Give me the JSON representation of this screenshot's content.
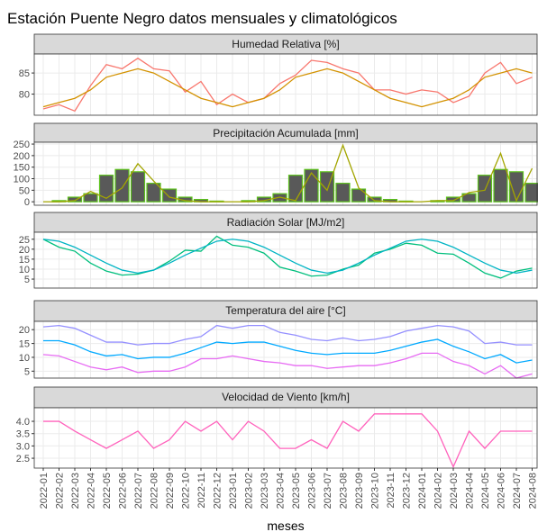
{
  "chart_data": {
    "type": "facet",
    "title": "Estación Puente Negro datos mensuales y climatológicos",
    "x_label": "meses",
    "categories": [
      "2022-01",
      "2022-02",
      "2022-03",
      "2022-04",
      "2022-05",
      "2022-06",
      "2022-07",
      "2022-08",
      "2022-09",
      "2022-10",
      "2022-11",
      "2022-12",
      "2023-01",
      "2023-02",
      "2023-03",
      "2023-04",
      "2023-05",
      "2023-06",
      "2023-07",
      "2023-08",
      "2023-09",
      "2023-10",
      "2023-11",
      "2023-12",
      "2024-01",
      "2024-02",
      "2024-03",
      "2024-04",
      "2024-05",
      "2024-06",
      "2024-07",
      "2024-08"
    ],
    "grid": true,
    "panels": [
      {
        "type": "line",
        "title": "Humedad Relativa [%]",
        "ylim": [
          75,
          89.5
        ],
        "yticks": [
          80,
          85
        ],
        "series": [
          {
            "type": "line",
            "color": "#F8766D",
            "values": [
              76.5,
              77.5,
              76,
              82,
              87,
              86,
              88.5,
              86,
              85.5,
              80.5,
              83,
              77.5,
              80,
              78,
              79,
              82.5,
              84.5,
              88,
              87.5,
              86,
              85,
              81,
              81,
              80,
              81,
              80.5,
              78,
              79.5,
              85,
              87.5,
              82.5,
              84
            ]
          },
          {
            "type": "line",
            "color": "#D39200",
            "values": [
              77,
              78,
              79,
              81,
              84,
              85,
              86,
              85,
              83,
              81,
              79,
              78,
              77,
              78,
              79,
              81,
              84,
              85,
              86,
              85,
              83,
              81,
              79,
              78,
              77,
              78,
              79,
              81,
              84,
              85,
              86,
              85
            ]
          }
        ]
      },
      {
        "type": "bar",
        "title": "Precipitación Acumulada [mm]",
        "ylim": [
          -15,
          258
        ],
        "yticks": [
          0,
          50,
          100,
          150,
          200,
          250
        ],
        "series": [
          {
            "type": "bar",
            "color": "#595959",
            "border": "#5CC21C",
            "values": [
              0,
              5,
              20,
              35,
              115,
              140,
              130,
              80,
              55,
              20,
              10,
              3,
              0,
              5,
              20,
              35,
              115,
              140,
              130,
              80,
              55,
              20,
              10,
              3,
              0,
              5,
              20,
              35,
              115,
              140,
              130,
              80
            ]
          },
          {
            "type": "line",
            "color": "#A3A500",
            "values": [
              0,
              0,
              5,
              45,
              15,
              60,
              165,
              90,
              20,
              5,
              0,
              0,
              0,
              0,
              5,
              20,
              5,
              125,
              50,
              245,
              60,
              5,
              0,
              0,
              0,
              5,
              5,
              40,
              50,
              210,
              5,
              145
            ]
          }
        ]
      },
      {
        "type": "line",
        "title": "Radiación Solar [MJ/m2]",
        "ylim": [
          0.5,
          28.5
        ],
        "yticks": [
          5,
          10,
          15,
          20,
          25
        ],
        "series": [
          {
            "type": "line",
            "color": "#00BF7D",
            "values": [
              25,
              21,
              19,
              13,
              9,
              7,
              7.5,
              9.5,
              14,
              19.5,
              19,
              26.5,
              22,
              21,
              18,
              11,
              9,
              6.5,
              7,
              10,
              12,
              18,
              20,
              23,
              22,
              18,
              17.5,
              13,
              8,
              5.5,
              9,
              10.5
            ]
          },
          {
            "type": "line",
            "color": "#00B4C4",
            "values": [
              25,
              24,
              21,
              17,
              13,
              9.5,
              8,
              9.5,
              13,
              17,
              20.5,
              24,
              25,
              24,
              21,
              17,
              13,
              9.5,
              8,
              9.5,
              13,
              17,
              20.5,
              24,
              25,
              24,
              21,
              17,
              13,
              9.5,
              8,
              9.5
            ]
          }
        ]
      },
      {
        "type": "line",
        "title": "Temperatura del aire [°C]",
        "ylim": [
          2.5,
          23
        ],
        "yticks": [
          5,
          10,
          15,
          20
        ],
        "series": [
          {
            "type": "line",
            "color": "#9590FF",
            "values": [
              21,
              21.5,
              20.5,
              18,
              15.5,
              15.5,
              14.5,
              15,
              15,
              16.5,
              17.5,
              21.5,
              20.5,
              21.5,
              21.5,
              19,
              18,
              16.5,
              16,
              17,
              16,
              16.5,
              17.5,
              19.5,
              20.5,
              21.5,
              21,
              19.5,
              15,
              15.5,
              14.5,
              14.5
            ]
          },
          {
            "type": "line",
            "color": "#00A9FF",
            "values": [
              16,
              16,
              14.5,
              12,
              10.5,
              11,
              9.5,
              10,
              10,
              11.5,
              13.5,
              15.5,
              15,
              15.5,
              15.5,
              14,
              12.5,
              11.5,
              11,
              11.5,
              11.5,
              11.5,
              12.5,
              14,
              15.5,
              16.5,
              14,
              12,
              9.5,
              11,
              8,
              9
            ]
          },
          {
            "type": "line",
            "color": "#E76BF3",
            "values": [
              11,
              10.5,
              8.5,
              6.5,
              5.5,
              6.5,
              4.5,
              5,
              5,
              6.5,
              9.5,
              9.5,
              10.5,
              9.5,
              8.5,
              8,
              7,
              7,
              6,
              6.5,
              7,
              7,
              8,
              9.5,
              11.5,
              11.5,
              8.5,
              7,
              4,
              7,
              2.5,
              4
            ]
          }
        ]
      },
      {
        "type": "line",
        "title": "Velocidad de Viento [km/h]",
        "ylim": [
          2.1,
          4.55
        ],
        "yticks": [
          {
            "value": 2.5,
            "label": "2.5"
          },
          {
            "value": 3,
            "label": "3.0"
          },
          {
            "value": 3.5,
            "label": "3.5"
          },
          {
            "value": 4,
            "label": "4.0"
          }
        ],
        "series": [
          {
            "type": "line",
            "color": "#FF62BC",
            "values": [
              4,
              4,
              3.6,
              3.25,
              2.9,
              3.25,
              3.6,
              2.9,
              3.25,
              4,
              3.6,
              4,
              3.25,
              4,
              3.6,
              2.9,
              2.9,
              3.25,
              2.9,
              4,
              3.6,
              4.3,
              4.3,
              4.3,
              4.3,
              3.6,
              2.15,
              3.6,
              2.9,
              3.6,
              3.6,
              3.6
            ]
          }
        ]
      }
    ]
  }
}
